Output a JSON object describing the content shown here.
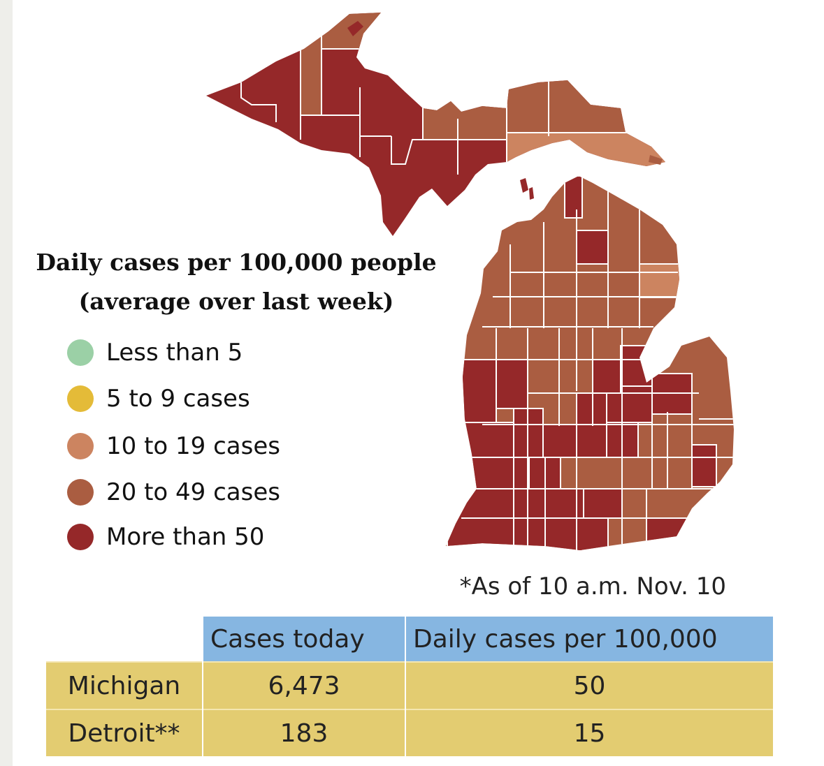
{
  "legend": {
    "title_line1": "Daily cases per 100,000 people",
    "title_line2": "(average over last week)",
    "items": [
      {
        "label": "Less than 5",
        "color": "#9bd0a6"
      },
      {
        "label": "5 to 9 cases",
        "color": "#e4bb38"
      },
      {
        "label": "10 to 19 cases",
        "color": "#cc8460"
      },
      {
        "label": "20 to 49 cases",
        "color": "#aa5d41"
      },
      {
        "label": "More than 50",
        "color": "#952829"
      }
    ]
  },
  "note": "*As of 10 a.m. Nov. 10",
  "table": {
    "headers": [
      "",
      "Cases today",
      "Daily cases per 100,000"
    ],
    "rows": [
      [
        "Michigan",
        "6,473",
        "50"
      ],
      [
        "Detroit**",
        "183",
        "15"
      ]
    ]
  },
  "map": {
    "colors": {
      "c10_19": "#cc8460",
      "c20_49": "#aa5d41",
      "c50": "#952829",
      "borders": "#ffffff"
    }
  }
}
